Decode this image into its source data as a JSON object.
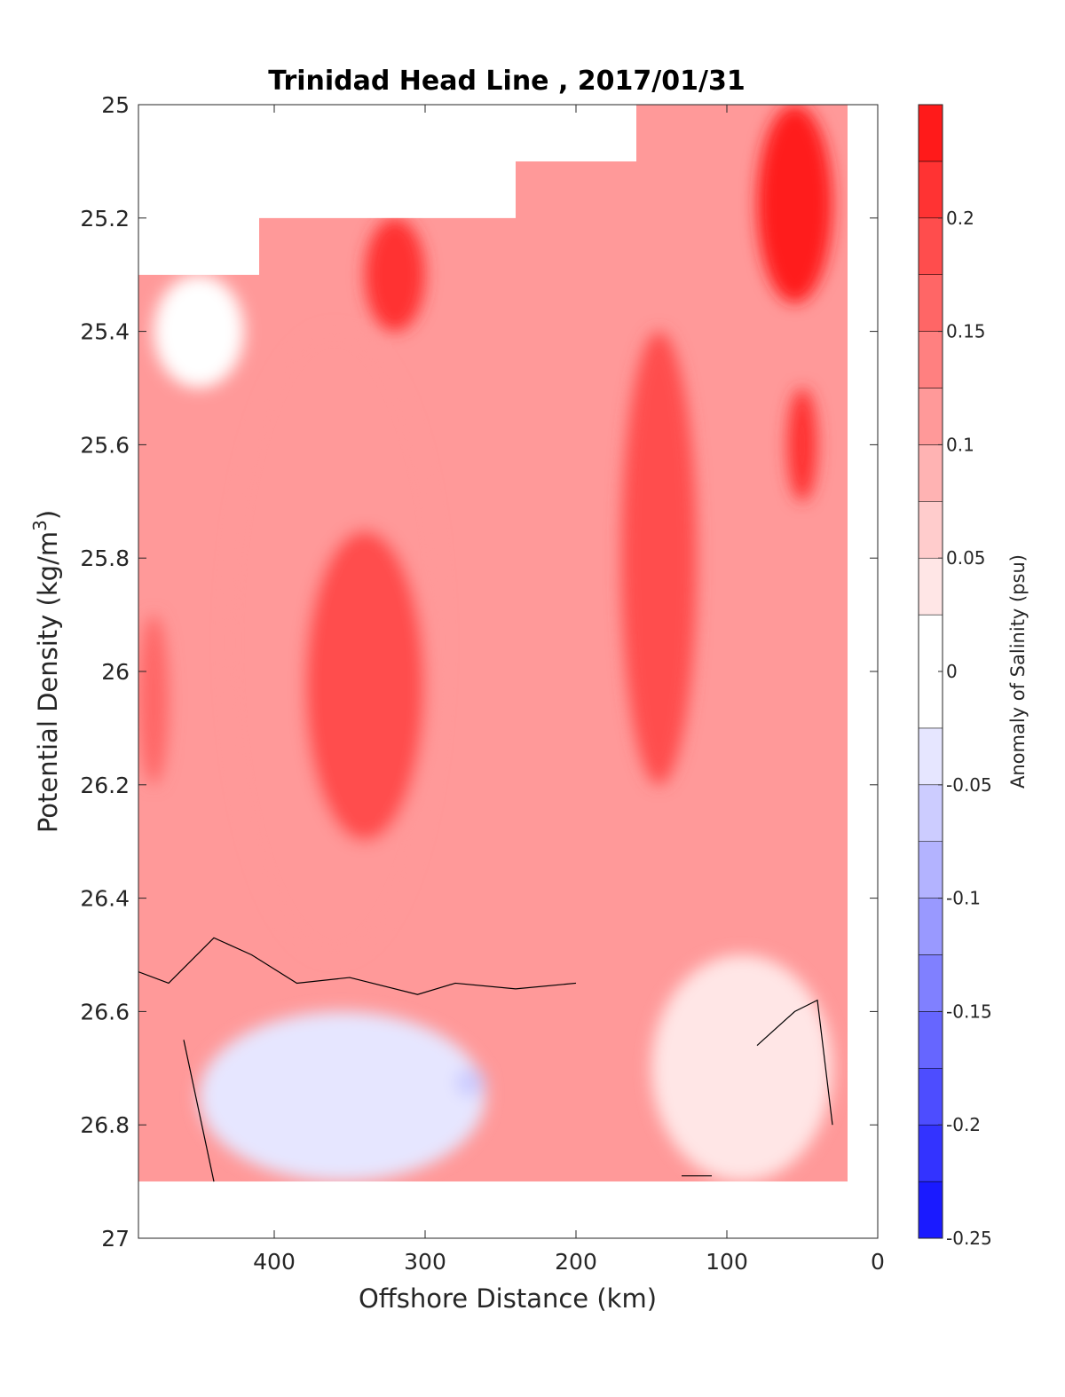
{
  "chart_data": {
    "type": "filled-contour",
    "title": "Trinidad Head Line , 2017/01/31",
    "xlabel": "Offshore Distance (km)",
    "ylabel": "Potential Density (kg/m",
    "ylabel_sup": "3",
    "ylabel_close": ")",
    "xlim": [
      490,
      0
    ],
    "xaxis_reversed": true,
    "ylim": [
      25,
      27
    ],
    "yaxis_reversed": true,
    "xticks": [
      400,
      300,
      200,
      100,
      0
    ],
    "yticks": [
      25,
      25.2,
      25.4,
      25.6,
      25.8,
      26,
      26.2,
      26.4,
      26.6,
      26.8,
      27
    ],
    "colorbar": {
      "label": "Anomaly of Salinity (psu)",
      "range": [
        -0.25,
        0.25
      ],
      "ticks": [
        0.2,
        0.15,
        0.1,
        0.05,
        0,
        -0.05,
        -0.1,
        -0.15,
        -0.2,
        -0.25
      ],
      "levels": [
        -0.25,
        -0.225,
        -0.2,
        -0.175,
        -0.15,
        -0.125,
        -0.1,
        -0.075,
        -0.05,
        -0.025,
        0.025,
        0.05,
        0.075,
        0.1,
        0.125,
        0.15,
        0.175,
        0.2,
        0.225,
        0.25
      ],
      "colors": [
        "#0000ff",
        "#1a1aff",
        "#3333ff",
        "#4d4dff",
        "#6666ff",
        "#8080ff",
        "#9999ff",
        "#b3b3ff",
        "#ccccff",
        "#e6e6ff",
        "#ffffff",
        "#ffe6e6",
        "#ffcccc",
        "#ffb3b3",
        "#ff9999",
        "#ff8080",
        "#ff6666",
        "#ff4d4d",
        "#ff3333",
        "#ff1a1a",
        "#ff0000"
      ]
    },
    "data_region": {
      "x_range": [
        490,
        20
      ],
      "y_range": [
        25,
        26.9
      ]
    },
    "anomaly_features": [
      {
        "x": [
          340,
          300
        ],
        "y": [
          25.2,
          25.4
        ],
        "value": 0.2
      },
      {
        "x": [
          430,
          290
        ],
        "y": [
          25.4,
          26.5
        ],
        "value": 0.1
      },
      {
        "x": [
          380,
          300
        ],
        "y": [
          25.75,
          26.3
        ],
        "value": 0.175
      },
      {
        "x": [
          170,
          120
        ],
        "y": [
          25.4,
          26.2
        ],
        "value": 0.175
      },
      {
        "x": [
          80,
          30
        ],
        "y": [
          25.0,
          25.35
        ],
        "value": 0.225
      },
      {
        "x": [
          60,
          40
        ],
        "y": [
          25.5,
          25.7
        ],
        "value": 0.2
      },
      {
        "x": [
          490,
          470
        ],
        "y": [
          25.9,
          26.2
        ],
        "value": 0.15
      },
      {
        "x": [
          480,
          420
        ],
        "y": [
          25.3,
          25.5
        ],
        "value": 0.0
      },
      {
        "x": [
          450,
          260
        ],
        "y": [
          26.6,
          26.9
        ],
        "value": -0.05
      },
      {
        "x": [
          280,
          260
        ],
        "y": [
          26.7,
          26.75
        ],
        "value": -0.075
      },
      {
        "x": [
          150,
          30
        ],
        "y": [
          26.5,
          26.9
        ],
        "value": 0.025
      }
    ],
    "zero_contours": [
      {
        "x": [
          490,
          470,
          440,
          415,
          385,
          350,
          305,
          280,
          240,
          200
        ],
        "y": [
          26.53,
          26.55,
          26.47,
          26.5,
          26.55,
          26.54,
          26.57,
          26.55,
          26.56,
          26.55
        ]
      },
      {
        "x": [
          460,
          440
        ],
        "y": [
          26.65,
          26.9
        ]
      },
      {
        "x": [
          80,
          55,
          40,
          30
        ],
        "y": [
          26.66,
          26.6,
          26.58,
          26.8
        ]
      },
      {
        "x": [
          130,
          110
        ],
        "y": [
          26.89,
          26.89
        ]
      }
    ]
  }
}
